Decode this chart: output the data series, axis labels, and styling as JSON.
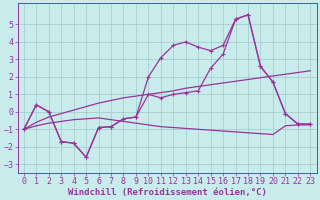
{
  "xlabel": "Windchill (Refroidissement éolien,°C)",
  "background_color": "#c8ecec",
  "grid_color": "#aacece",
  "line_color": "#993399",
  "x": [
    0,
    1,
    2,
    3,
    4,
    5,
    6,
    7,
    8,
    9,
    10,
    11,
    12,
    13,
    14,
    15,
    16,
    17,
    18,
    19,
    20,
    21,
    22,
    23
  ],
  "y_line1": [
    -1.0,
    0.4,
    0.0,
    -1.7,
    -1.8,
    -2.6,
    -0.9,
    -0.85,
    -0.4,
    -0.3,
    2.0,
    3.1,
    3.8,
    4.0,
    3.7,
    3.5,
    3.8,
    5.3,
    5.55,
    2.6,
    1.7,
    -0.1,
    -0.7,
    -0.7
  ],
  "y_line2": [
    -1.0,
    0.4,
    0.0,
    -1.7,
    -1.8,
    -2.6,
    -0.9,
    -0.85,
    -0.4,
    -0.3,
    1.0,
    0.8,
    1.0,
    1.1,
    1.2,
    2.5,
    3.3,
    5.3,
    5.55,
    2.6,
    1.7,
    -0.1,
    -0.7,
    -0.7
  ],
  "y_reg_upper": [
    -1.0,
    -0.6,
    -0.3,
    -0.1,
    0.1,
    0.3,
    0.5,
    0.65,
    0.8,
    0.9,
    1.0,
    1.1,
    1.2,
    1.35,
    1.45,
    1.55,
    1.65,
    1.75,
    1.85,
    1.95,
    2.05,
    2.15,
    2.25,
    2.35
  ],
  "y_reg_lower": [
    -1.0,
    -0.8,
    -0.65,
    -0.55,
    -0.45,
    -0.4,
    -0.35,
    -0.45,
    -0.55,
    -0.65,
    -0.75,
    -0.85,
    -0.9,
    -0.95,
    -1.0,
    -1.05,
    -1.1,
    -1.15,
    -1.2,
    -1.25,
    -1.3,
    -0.8,
    -0.75,
    -0.75
  ],
  "ylim": [
    -3.5,
    6.2
  ],
  "yticks": [
    -3,
    -2,
    -1,
    0,
    1,
    2,
    3,
    4,
    5
  ],
  "xlabel_fontsize": 6.5,
  "tick_fontsize": 6.0,
  "figsize": [
    3.2,
    2.0
  ],
  "dpi": 100
}
